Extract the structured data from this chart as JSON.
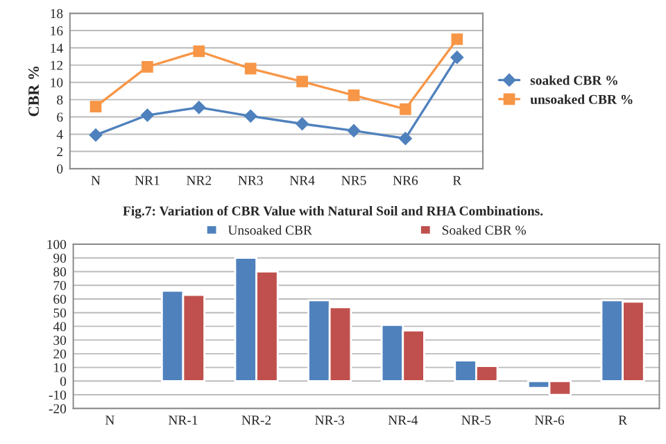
{
  "chart_data": [
    {
      "type": "line",
      "ylabel": "CBR %",
      "categories": [
        "N",
        "NR1",
        "NR2",
        "NR3",
        "NR4",
        "NR5",
        "NR6",
        "R"
      ],
      "series": [
        {
          "name": "soaked CBR %",
          "color": "#4f81bd",
          "marker": "diamond",
          "values": [
            3.9,
            6.2,
            7.1,
            6.1,
            5.2,
            4.4,
            3.5,
            12.9
          ]
        },
        {
          "name": "unsoaked CBR %",
          "color": "#f79646",
          "marker": "square",
          "values": [
            7.2,
            11.8,
            13.6,
            11.6,
            10.1,
            8.5,
            6.9,
            15.0
          ]
        }
      ],
      "ylim": [
        0,
        18
      ],
      "yticks": [
        0,
        2,
        4,
        6,
        8,
        10,
        12,
        14,
        16,
        18
      ],
      "grid": "y",
      "legend": "right",
      "line_style": "solid",
      "annotations": [
        "Fig.7: Variation of CBR Value with Natural Soil and RHA Combinations."
      ]
    },
    {
      "type": "bar",
      "categories": [
        "N",
        "NR-1",
        "NR-2",
        "NR-3",
        "NR-4",
        "NR-5",
        "NR-6",
        "R"
      ],
      "series": [
        {
          "name": "Unsoaked CBR",
          "color": "#4f81bd",
          "values": [
            null,
            66,
            90,
            59,
            41,
            15,
            -5,
            59
          ]
        },
        {
          "name": "Soaked CBR %",
          "color": "#c0504d",
          "values": [
            null,
            63,
            80,
            54,
            37,
            11,
            -10,
            58
          ]
        }
      ],
      "ylim": [
        -20,
        100
      ],
      "yticks": [
        -20,
        -10,
        0,
        10,
        20,
        30,
        40,
        50,
        60,
        70,
        80,
        90,
        100
      ],
      "grid": "y",
      "legend": "top"
    }
  ]
}
